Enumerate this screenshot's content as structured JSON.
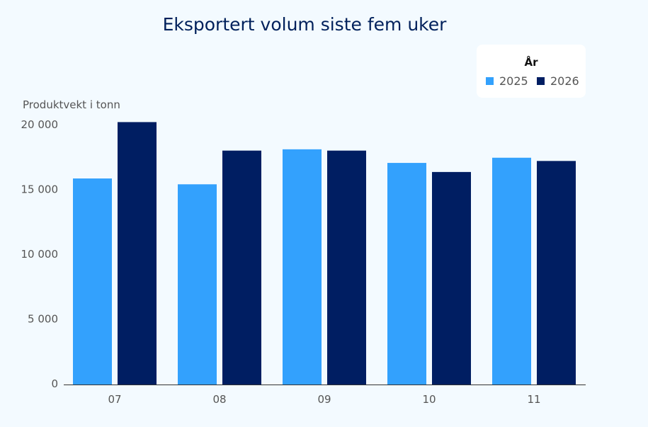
{
  "chart_data": {
    "type": "bar",
    "title": "Eksportert volum siste fem uker",
    "xlabel": "",
    "ylabel": "Produktvekt i tonn",
    "categories": [
      "07",
      "08",
      "09",
      "10",
      "11"
    ],
    "series": [
      {
        "name": "2025",
        "color": "#33a1fd",
        "values": [
          15900,
          15450,
          18150,
          17100,
          17500
        ]
      },
      {
        "name": "2026",
        "color": "#001e62",
        "values": [
          20250,
          18050,
          18050,
          16400,
          17250
        ]
      }
    ],
    "ylim": [
      0,
      20000
    ],
    "yticks": [
      0,
      5000,
      10000,
      15000,
      20000
    ],
    "ytick_labels": [
      "0",
      "5 000",
      "10 000",
      "15 000",
      "20 000"
    ],
    "grid": false,
    "legend": {
      "title": "År",
      "placement": "top-right"
    }
  }
}
